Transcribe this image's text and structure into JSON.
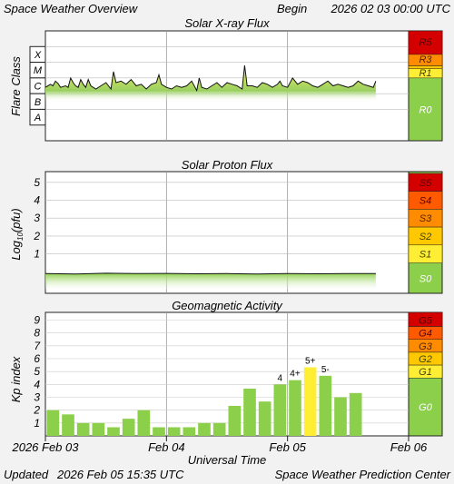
{
  "header": {
    "title": "Space Weather Overview",
    "begin_label": "Begin",
    "begin_value": "2026 02 03 00:00 UTC"
  },
  "footer": {
    "updated_label": "Updated",
    "updated_value": "2026 Feb 05 15:35 UTC",
    "credit": "Space Weather Prediction Center"
  },
  "colors": {
    "R5": "#d40000",
    "R4": "#ff5a00",
    "R3": "#ff8c00",
    "R2": "#ffc800",
    "R1": "#ffee33",
    "R0": "#8ccf4a",
    "bar": "#8ccf4a",
    "bar_highlight": "#ffee33"
  },
  "chart_data": [
    {
      "type": "area",
      "title": "Solar X-ray Flux",
      "ylabel": "Flare Class",
      "y_tick_labels": [
        "X",
        "M",
        "C",
        "B",
        "A"
      ],
      "scale": "log",
      "ylim_log10_wm2": [
        -9,
        -2
      ],
      "xlim_hours": [
        0,
        72
      ],
      "x_hours": [
        0,
        1,
        1.5,
        2,
        2.5,
        3,
        4,
        4.5,
        5,
        5.5,
        6,
        6.5,
        7,
        7.5,
        8,
        8.5,
        9,
        10,
        11,
        12,
        13,
        13.5,
        14,
        15,
        16,
        17,
        18,
        19,
        20,
        21,
        22,
        22.5,
        23,
        24,
        25,
        26,
        27,
        28,
        29,
        30,
        30.5,
        31,
        32,
        33,
        34,
        35,
        36,
        37,
        38,
        39,
        39.5,
        40,
        41,
        42,
        43,
        44,
        45,
        46,
        46.5,
        47,
        48,
        49,
        50,
        51,
        52,
        53,
        54,
        55,
        55.5,
        56,
        57,
        58,
        59,
        60,
        61,
        62,
        63,
        64,
        65,
        65.5
      ],
      "flux_log10_wm2": [
        -5.6,
        -5.4,
        -5.5,
        -5.2,
        -5.35,
        -5.6,
        -5.5,
        -5.6,
        -5.0,
        -5.3,
        -5.5,
        -5.6,
        -5.1,
        -5.4,
        -5.6,
        -5.1,
        -5.5,
        -5.7,
        -5.5,
        -5.3,
        -5.7,
        -4.6,
        -5.3,
        -5.2,
        -5.4,
        -5.1,
        -5.5,
        -5.4,
        -5.7,
        -5.4,
        -5.3,
        -4.8,
        -5.4,
        -5.6,
        -5.7,
        -5.5,
        -5.6,
        -5.5,
        -5.2,
        -5.8,
        -5.0,
        -5.6,
        -5.7,
        -5.5,
        -5.3,
        -5.6,
        -5.3,
        -5.4,
        -5.5,
        -5.7,
        -4.2,
        -5.5,
        -5.5,
        -5.6,
        -5.3,
        -5.4,
        -5.6,
        -5.4,
        -5.2,
        -5.5,
        -5.6,
        -5.0,
        -5.4,
        -5.2,
        -5.3,
        -5.5,
        -5.6,
        -5.4,
        -5.3,
        -5.2,
        -5.5,
        -5.4,
        -5.5,
        -5.6,
        -5.5,
        -5.2,
        -5.4,
        -5.5,
        -5.6,
        -5.2
      ],
      "scale_labels": [
        "R5",
        "R3",
        "R1",
        "R0"
      ]
    },
    {
      "type": "area",
      "title": "Solar Proton Flux",
      "ylabel": "Log",
      "ylabel_sub": "10",
      "ylabel_tail": "(pfu)",
      "y_tick_labels": [
        "5",
        "4",
        "3",
        "2",
        "1"
      ],
      "ylim_log10_pfu": [
        -1.2,
        5.6
      ],
      "xlim_hours": [
        0,
        72
      ],
      "x_hours": [
        0,
        6,
        12,
        18,
        24,
        30,
        36,
        42,
        48,
        54,
        60,
        65.5
      ],
      "flux_log10_pfu": [
        -0.1,
        -0.12,
        -0.08,
        -0.1,
        -0.09,
        -0.11,
        -0.1,
        -0.12,
        -0.1,
        -0.11,
        -0.1,
        -0.1
      ],
      "scale_labels": [
        "S5",
        "S4",
        "S3",
        "S2",
        "S1",
        "S0"
      ]
    },
    {
      "type": "bar",
      "title": "Geomagnetic Activity",
      "ylabel": "Kp index",
      "y_tick_labels": [
        "9",
        "8",
        "7",
        "6",
        "5",
        "4",
        "3",
        "2",
        "1"
      ],
      "ylim": [
        0,
        9.6
      ],
      "xlim_hours": [
        0,
        72
      ],
      "bar_hours": [
        0,
        3,
        6,
        9,
        12,
        15,
        18,
        21,
        24,
        27,
        30,
        33,
        36,
        39,
        42,
        45,
        48,
        51,
        54,
        57,
        60,
        63
      ],
      "values": [
        2.0,
        1.67,
        1.0,
        1.0,
        0.67,
        1.33,
        2.0,
        0.67,
        0.67,
        0.67,
        1.0,
        1.0,
        2.33,
        3.67,
        2.67,
        4.0,
        4.33,
        5.33,
        4.67,
        3.0,
        3.33,
        0
      ],
      "highlight_threshold": 5,
      "bar_labels": [
        {
          "hour": 45,
          "text": "4"
        },
        {
          "hour": 48,
          "text": "4+"
        },
        {
          "hour": 51,
          "text": "5+"
        },
        {
          "hour": 54,
          "text": "5-"
        }
      ],
      "scale_labels": [
        "G5",
        "G4",
        "G3",
        "G2",
        "G1",
        "G0"
      ]
    }
  ],
  "x_axis": {
    "label": "Universal Time",
    "ticks": [
      {
        "hour": 0,
        "text": "2026 Feb 03"
      },
      {
        "hour": 24,
        "text": "Feb 04"
      },
      {
        "hour": 48,
        "text": "Feb 05"
      },
      {
        "hour": 72,
        "text": "Feb 06"
      }
    ]
  }
}
